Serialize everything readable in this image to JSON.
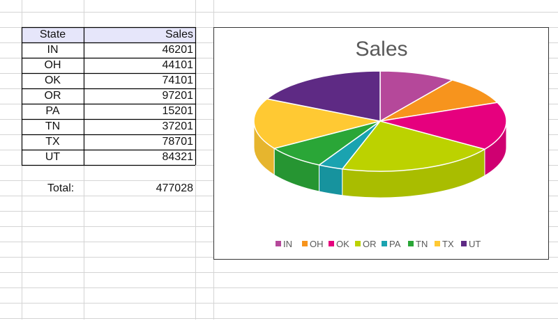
{
  "table": {
    "header_state": "State",
    "header_sales": "Sales",
    "rows": [
      {
        "state": "IN",
        "sales": "46201"
      },
      {
        "state": "OH",
        "sales": "44101"
      },
      {
        "state": "OK",
        "sales": "74101"
      },
      {
        "state": "OR",
        "sales": "97201"
      },
      {
        "state": "PA",
        "sales": "15201"
      },
      {
        "state": "TN",
        "sales": "37201"
      },
      {
        "state": "TX",
        "sales": "78701"
      },
      {
        "state": "UT",
        "sales": "84321"
      }
    ],
    "total_label": "Total:",
    "total_value": "477028",
    "header_fill": "#e6e6fa"
  },
  "chart_data": {
    "type": "pie",
    "style": "3d exploded-none tilted pie",
    "title": "Sales",
    "categories": [
      "IN",
      "OH",
      "OK",
      "OR",
      "PA",
      "TN",
      "TX",
      "UT"
    ],
    "values": [
      46201,
      44101,
      74101,
      97201,
      15201,
      37201,
      78701,
      84321
    ],
    "colors": [
      "#b5489a",
      "#f7941d",
      "#e6007e",
      "#bcd200",
      "#1aa3b0",
      "#2aa637",
      "#ffc933",
      "#5e2a84"
    ],
    "legend_position": "bottom"
  }
}
